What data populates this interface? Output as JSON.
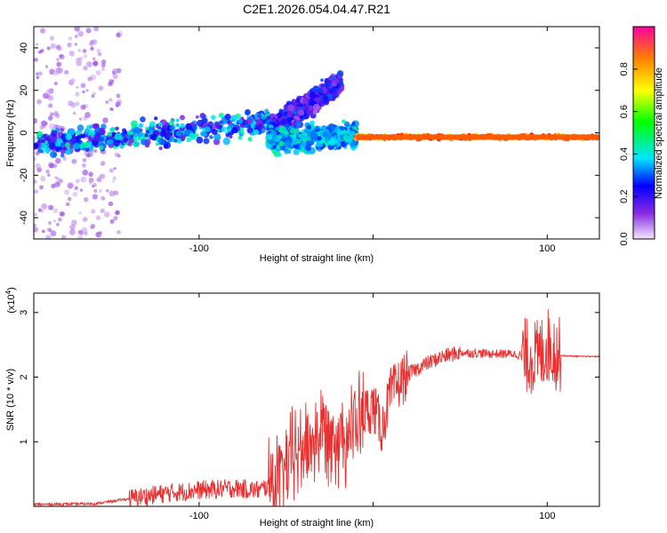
{
  "title": "C2E1.2026.054.04.47.R21",
  "chart_data": [
    {
      "type": "heatmap",
      "name": "spectrogram",
      "xlabel": "Height of straight line (km)",
      "ylabel": "Frequency (Hz)",
      "xlim": [
        -195,
        130
      ],
      "ylim": [
        -50,
        50
      ],
      "xticks": [
        -100,
        0,
        100
      ],
      "xtick_labels": [
        "-100",
        "",
        "100"
      ],
      "yticks": [
        -40,
        -20,
        0,
        20,
        40
      ],
      "ytick_labels": [
        "-40",
        "-20",
        "0",
        "20",
        "40"
      ],
      "colorbar": {
        "label": "Normalized spectral amplitude",
        "range": [
          0,
          1
        ],
        "ticks": [
          0.0,
          0.2,
          0.4,
          0.6,
          0.8
        ],
        "tick_labels": [
          "0.0",
          "0.2",
          "0.4",
          "0.6",
          "0.8"
        ],
        "colormap": [
          "#f3e8fb",
          "#8a2be2",
          "#0000ff",
          "#00e5ff",
          "#00ff00",
          "#ffff00",
          "#ff8000",
          "#ff0000"
        ]
      },
      "features": [
        {
          "name": "scattered band",
          "x_range": [
            -195,
            -60
          ],
          "center_hz": [
            -6,
            5
          ],
          "level": [
            0.15,
            0.5
          ]
        },
        {
          "name": "rising branch",
          "x_range": [
            -60,
            -18
          ],
          "center_hz": [
            0,
            25
          ],
          "level": [
            0.1,
            0.35
          ]
        },
        {
          "name": "main branch",
          "x_range": [
            -60,
            -10
          ],
          "center_hz": [
            -4,
            -1
          ],
          "level": [
            0.3,
            0.5
          ]
        },
        {
          "name": "stable line",
          "x_range": [
            -10,
            130
          ],
          "center_hz": [
            -2,
            -2
          ],
          "level": [
            0.7,
            1.0
          ]
        }
      ]
    },
    {
      "type": "line",
      "name": "snr",
      "xlabel": "Height of straight line (km)",
      "ylabel": "SNR (10 * v/v)",
      "y_multiplier": "(x10",
      "y_multiplier_exp": "4",
      "y_multiplier_close": ")",
      "xlim": [
        -195,
        130
      ],
      "ylim": [
        0,
        3.3
      ],
      "xticks": [
        -100,
        0,
        100
      ],
      "xtick_labels": [
        "-100",
        "",
        "100"
      ],
      "yticks": [
        1,
        2,
        3
      ],
      "ytick_labels": [
        "1",
        "2",
        "3"
      ],
      "color": "#e83030",
      "x": [
        -195,
        -160,
        -140,
        -120,
        -100,
        -80,
        -65,
        -55,
        -45,
        -35,
        -28,
        -20,
        -12,
        -5,
        0,
        5,
        10,
        15,
        20,
        30,
        40,
        50,
        60,
        70,
        80,
        90,
        95,
        100,
        103,
        106,
        110,
        120,
        130
      ],
      "y": [
        0.03,
        0.04,
        0.12,
        0.2,
        0.25,
        0.28,
        0.25,
        0.4,
        0.8,
        1.0,
        1.2,
        1.1,
        1.2,
        1.45,
        1.55,
        1.2,
        1.75,
        1.9,
        2.05,
        2.2,
        2.32,
        2.38,
        2.37,
        2.36,
        2.36,
        2.32,
        2.3,
        2.5,
        2.45,
        2.35,
        2.33,
        2.32,
        2.32
      ]
    }
  ]
}
